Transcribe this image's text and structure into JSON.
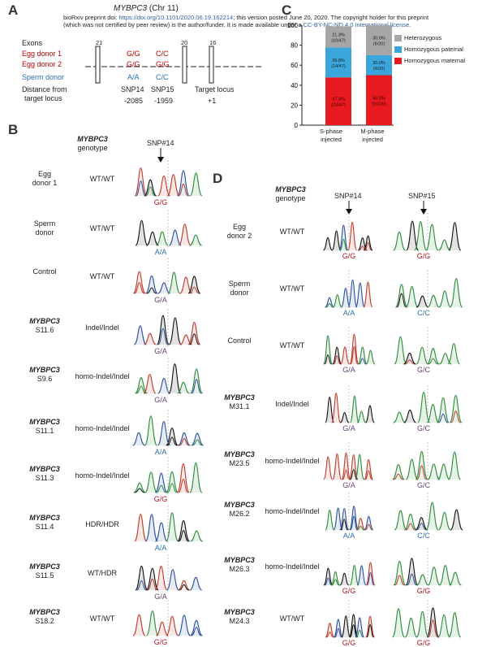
{
  "panels": {
    "A": "A",
    "B": "B",
    "C": "C",
    "D": "D"
  },
  "preprint": {
    "line1_a": "bioRxiv preprint doi: ",
    "line1_link": "https://doi.org/10.1101/2020.06.19.162214",
    "line1_b": "; this version posted June 20, 2020. The copyright holder for this preprint",
    "line2_a": "(which was not certified by peer review) is the author/funder. It is made available under a ",
    "line2_link": "CC-BY-NC-ND 4.0 International license",
    "line2_b": "."
  },
  "panelA": {
    "title_gene": "MYBPC3",
    "title_rest": " (Chr 11)",
    "exons_label": "Exons",
    "exon_numbers": [
      "21",
      "20",
      "16"
    ],
    "rows": [
      {
        "label": "Egg donor 1",
        "snp14": "G/G",
        "snp15": "C/C",
        "color": "red"
      },
      {
        "label": "Egg donor 2",
        "snp14": "G/G",
        "snp15": "G/G",
        "color": "red"
      },
      {
        "label": "Sperm donor",
        "snp14": "A/A",
        "snp15": "C/C",
        "color": "blue"
      }
    ],
    "distance_label_1": "Distance from",
    "distance_label_2": "target locus",
    "loci": [
      {
        "name": "SNP14",
        "dist": "-2085"
      },
      {
        "name": "SNP15",
        "dist": "-1959"
      },
      {
        "name": "Target locus",
        "dist": "+1"
      }
    ]
  },
  "panelC": {
    "yticks": [
      "0",
      "20",
      "40",
      "60",
      "80",
      "100"
    ],
    "categories": [
      "S-phase\ninjected",
      "M-phase\ninjected"
    ],
    "legend": [
      "Heterozygous",
      "Homozygous paternal",
      "Homozygous maternal"
    ],
    "colors": {
      "het": "#a6a6a6",
      "pat": "#3aa6dc",
      "mat": "#e8191f"
    },
    "bar_labels": [
      {
        "mat": "47.8%\n(23/47)",
        "pat": "29.8%\n(14/47)",
        "het": "21.3%\n(10/47)"
      },
      {
        "mat": "50.0%\n(10/20)",
        "pat": "20.0%\n(4/20)",
        "het": "30.0%\n(6/20)"
      }
    ]
  },
  "chart_data": {
    "type": "bar",
    "stacked": true,
    "categories": [
      "S-phase injected",
      "M-phase injected"
    ],
    "series": [
      {
        "name": "Homozygous maternal",
        "values": [
          47.8,
          50.0
        ]
      },
      {
        "name": "Homozygous paternal",
        "values": [
          29.8,
          20.0
        ]
      },
      {
        "name": "Heterozygous",
        "values": [
          21.3,
          30.0
        ]
      }
    ],
    "ylim": [
      0,
      100
    ],
    "legend_position": "right"
  },
  "panelB": {
    "gene_header": "MYBPC3",
    "genotype_header": "genotype",
    "snp_label": "SNP#14",
    "samples": [
      {
        "name1": "Egg",
        "name2": "donor 1",
        "gene": "",
        "geno": "WT/WT",
        "call": "G/G",
        "callcolor": "red"
      },
      {
        "name1": "Sperm",
        "name2": "donor",
        "gene": "",
        "geno": "WT/WT",
        "call": "A/A",
        "callcolor": "blue"
      },
      {
        "name1": "Control",
        "name2": "",
        "gene": "",
        "geno": "WT/WT",
        "call": "G/A",
        "callcolor": "mix"
      },
      {
        "name1": "",
        "name2": "S11.6",
        "gene": "MYBPC3",
        "geno": "Indel/Indel",
        "call": "G/A",
        "callcolor": "mix"
      },
      {
        "name1": "",
        "name2": "S9.6",
        "gene": "MYBPC3",
        "geno": "homo-Indel/Indel",
        "call": "G/A",
        "callcolor": "mix"
      },
      {
        "name1": "",
        "name2": "S11.1",
        "gene": "MYBPC3",
        "geno": "homo-Indel/Indel",
        "call": "A/A",
        "callcolor": "blue"
      },
      {
        "name1": "",
        "name2": "S11.3",
        "gene": "MYBPC3",
        "geno": "homo-Indel/Indel",
        "call": "G/G",
        "callcolor": "red"
      },
      {
        "name1": "",
        "name2": "S11.4",
        "gene": "MYBPC3",
        "geno": "HDR/HDR",
        "call": "A/A",
        "callcolor": "blue"
      },
      {
        "name1": "",
        "name2": "S11.5",
        "gene": "MYBPC3",
        "geno": "WT/HDR",
        "call": "G/A",
        "callcolor": "mix"
      },
      {
        "name1": "",
        "name2": "S18.2",
        "gene": "MYBPC3",
        "geno": "WT/WT",
        "call": "G/G",
        "callcolor": "red"
      }
    ]
  },
  "panelD": {
    "gene_header": "MYBPC3",
    "genotype_header": "genotype",
    "snp14_label": "SNP#14",
    "snp15_label": "SNP#15",
    "samples": [
      {
        "name1": "Egg",
        "name2": "donor 2",
        "gene": "",
        "geno": "WT/WT",
        "call14": "G/G",
        "c14": "red",
        "call15": "G/G",
        "c15": "red"
      },
      {
        "name1": "Sperm",
        "name2": "donor",
        "gene": "",
        "geno": "WT/WT",
        "call14": "A/A",
        "c14": "blue",
        "call15": "C/C",
        "c15": "blue"
      },
      {
        "name1": "Control",
        "name2": "",
        "gene": "",
        "geno": "WT/WT",
        "call14": "G/A",
        "c14": "mix",
        "call15": "G/C",
        "c15": "mix"
      },
      {
        "name1": "",
        "name2": "M31.1",
        "gene": "MYBPC3",
        "geno": "Indel/Indel",
        "call14": "G/A",
        "c14": "mix",
        "call15": "G/C",
        "c15": "mix"
      },
      {
        "name1": "",
        "name2": "M23.5",
        "gene": "MYBPC3",
        "geno": "homo-Indel/Indel",
        "call14": "G/A",
        "c14": "mix",
        "call15": "G/C",
        "c15": "mix"
      },
      {
        "name1": "",
        "name2": "M26.2",
        "gene": "MYBPC3",
        "geno": "homo-Indel/Indel",
        "call14": "A/A",
        "c14": "blue",
        "call15": "C/C",
        "c15": "blue"
      },
      {
        "name1": "",
        "name2": "M26.3",
        "gene": "MYBPC3",
        "geno": "homo-Indel/Indel",
        "call14": "G/G",
        "c14": "red",
        "call15": "G/G",
        "c15": "red"
      },
      {
        "name1": "",
        "name2": "M24.3",
        "gene": "MYBPC3",
        "geno": "WT/WT",
        "call14": "G/G",
        "c14": "red",
        "call15": "G/G",
        "c15": "red"
      }
    ]
  }
}
